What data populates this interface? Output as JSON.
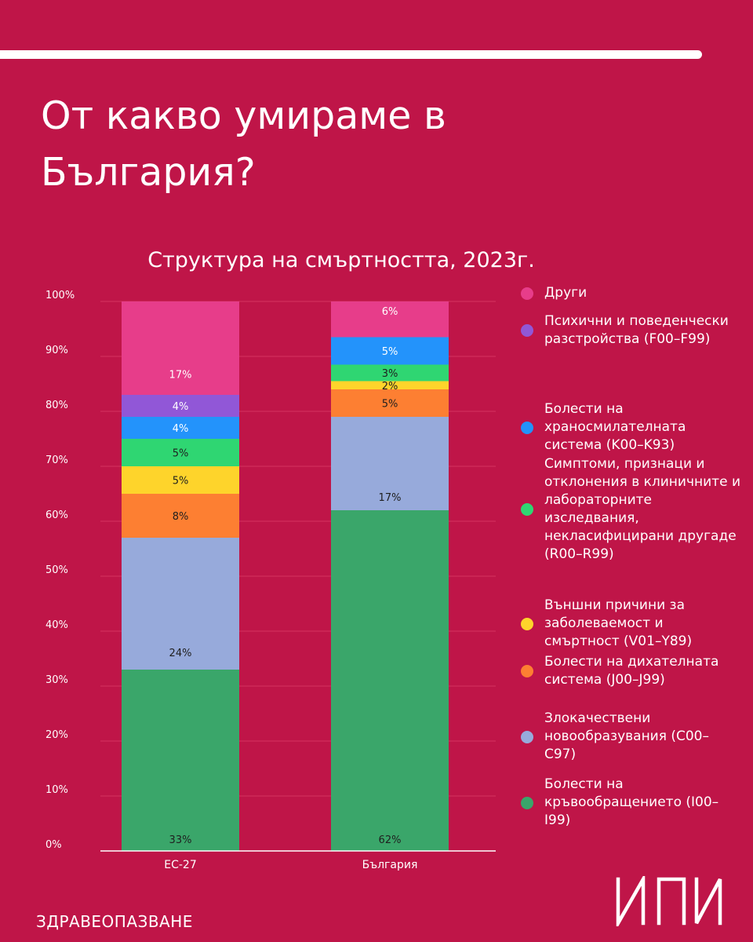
{
  "header": {
    "title": "От какво умираме в България?",
    "footer_category": "ЗДРАВЕОПАЗВАНЕ",
    "logo_text": "ИПИ"
  },
  "chart_data": {
    "type": "bar",
    "stacked": true,
    "title": "Структура на смъртността, 2023г.",
    "xlabel": "",
    "ylabel": "",
    "ylim": [
      0,
      100
    ],
    "yticks": [
      "0%",
      "10%",
      "20%",
      "30%",
      "40%",
      "50%",
      "60%",
      "70%",
      "80%",
      "90%",
      "100%"
    ],
    "categories": [
      "ЕС-27",
      "България"
    ],
    "legend_position": "right",
    "series": [
      {
        "name": "Болести на кръвообращението (I00–I99)",
        "color": "#3aa66a",
        "values": [
          33,
          62
        ],
        "labels": [
          "33%",
          "62%"
        ]
      },
      {
        "name": "Злокачествени новообразувания (C00–C97)",
        "color": "#97aadb",
        "values": [
          24,
          17
        ],
        "labels": [
          "24%",
          "17%"
        ]
      },
      {
        "name": "Болести на дихателната система (J00–J99)",
        "color": "#fd7f32",
        "values": [
          8,
          5
        ],
        "labels": [
          "8%",
          "5%"
        ]
      },
      {
        "name": "Външни причини за заболеваемост и смъртност (V01–Y89)",
        "color": "#fed42b",
        "values": [
          5,
          1.5
        ],
        "labels": [
          "5%",
          "2%"
        ]
      },
      {
        "name": "Симптоми, признаци и отклонения в клиничните и лабораторните изследвания, некласифицирани другаде (R00–R99)",
        "color": "#2fd672",
        "values": [
          5,
          3
        ],
        "labels": [
          "5%",
          "3%"
        ]
      },
      {
        "name": "Болести на храносмилателната система (K00–K93)",
        "color": "#2393fb",
        "values": [
          4,
          5
        ],
        "labels": [
          "4%",
          "5%"
        ]
      },
      {
        "name": "Психични и поведенчески разстройства (F00–F99)",
        "color": "#9157d7",
        "values": [
          4,
          0
        ],
        "labels": [
          "4%",
          "0%"
        ]
      },
      {
        "name": "Други",
        "color": "#e73d8a",
        "values": [
          17,
          6.5
        ],
        "labels": [
          "17%",
          "6%"
        ]
      }
    ],
    "label_colors": {
      "light": "#ffffff",
      "dark": "#1f1f1f"
    }
  }
}
